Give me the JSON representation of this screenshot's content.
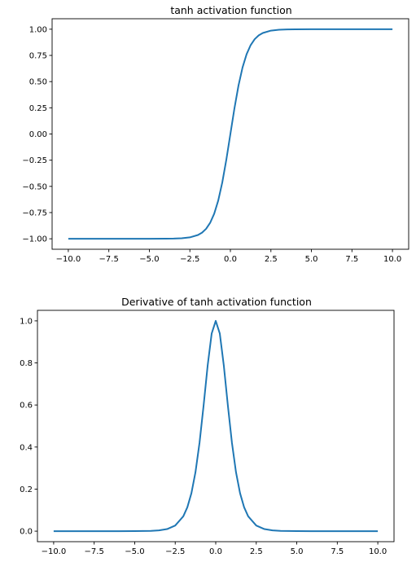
{
  "chart_data": [
    {
      "type": "line",
      "title": "tanh activation function",
      "xlabel": "",
      "ylabel": "",
      "xlim": [
        -11.0,
        11.0
      ],
      "ylim": [
        -1.1,
        1.1
      ],
      "xticks": [
        -10.0,
        -7.5,
        -5.0,
        -2.5,
        0.0,
        2.5,
        5.0,
        7.5,
        10.0
      ],
      "xtick_labels": [
        "−10.0",
        "−7.5",
        "−5.0",
        "−2.5",
        "0.0",
        "2.5",
        "5.0",
        "7.5",
        "10.0"
      ],
      "yticks": [
        -1.0,
        -0.75,
        -0.5,
        -0.25,
        0.0,
        0.25,
        0.5,
        0.75,
        1.0
      ],
      "ytick_labels": [
        "−1.00",
        "−0.75",
        "−0.50",
        "−0.25",
        "0.00",
        "0.25",
        "0.50",
        "0.75",
        "1.00"
      ],
      "grid": false,
      "series": [
        {
          "color": "#1f77b4",
          "x": [
            -10,
            -8,
            -6,
            -5,
            -4,
            -3.5,
            -3,
            -2.5,
            -2,
            -1.75,
            -1.5,
            -1.25,
            -1,
            -0.75,
            -0.5,
            -0.25,
            0,
            0.25,
            0.5,
            0.75,
            1,
            1.25,
            1.5,
            1.75,
            2,
            2.5,
            3,
            3.5,
            4,
            5,
            6,
            8,
            10
          ],
          "y": [
            -1.0,
            -1.0,
            -1.0,
            -0.9999,
            -0.9993,
            -0.9982,
            -0.9951,
            -0.9866,
            -0.964,
            -0.9414,
            -0.9051,
            -0.8483,
            -0.7616,
            -0.6351,
            -0.4621,
            -0.2449,
            0.0,
            0.2449,
            0.4621,
            0.6351,
            0.7616,
            0.8483,
            0.9051,
            0.9414,
            0.964,
            0.9866,
            0.9951,
            0.9982,
            0.9993,
            0.9999,
            1.0,
            1.0,
            1.0
          ]
        }
      ]
    },
    {
      "type": "line",
      "title": "Derivative of tanh activation function",
      "xlabel": "",
      "ylabel": "",
      "xlim": [
        -11.0,
        11.0
      ],
      "ylim": [
        -0.05,
        1.05
      ],
      "xticks": [
        -10.0,
        -7.5,
        -5.0,
        -2.5,
        0.0,
        2.5,
        5.0,
        7.5,
        10.0
      ],
      "xtick_labels": [
        "−10.0",
        "−7.5",
        "−5.0",
        "−2.5",
        "0.0",
        "2.5",
        "5.0",
        "7.5",
        "10.0"
      ],
      "yticks": [
        0.0,
        0.2,
        0.4,
        0.6,
        0.8,
        1.0
      ],
      "ytick_labels": [
        "0.0",
        "0.2",
        "0.4",
        "0.6",
        "0.8",
        "1.0"
      ],
      "grid": false,
      "series": [
        {
          "color": "#1f77b4",
          "x": [
            -10,
            -8,
            -6,
            -5,
            -4,
            -3.5,
            -3,
            -2.5,
            -2,
            -1.75,
            -1.5,
            -1.25,
            -1,
            -0.75,
            -0.5,
            -0.25,
            0,
            0.25,
            0.5,
            0.75,
            1,
            1.25,
            1.5,
            1.75,
            2,
            2.5,
            3,
            3.5,
            4,
            5,
            6,
            8,
            10
          ],
          "y": [
            0.0,
            0.0,
            0.0,
            0.0002,
            0.0013,
            0.0036,
            0.0099,
            0.0266,
            0.0707,
            0.1138,
            0.1807,
            0.2804,
            0.42,
            0.5966,
            0.7864,
            0.94,
            1.0,
            0.94,
            0.7864,
            0.5966,
            0.42,
            0.2804,
            0.1807,
            0.1138,
            0.0707,
            0.0266,
            0.0099,
            0.0036,
            0.0013,
            0.0002,
            0.0,
            0.0,
            0.0
          ]
        }
      ]
    }
  ]
}
